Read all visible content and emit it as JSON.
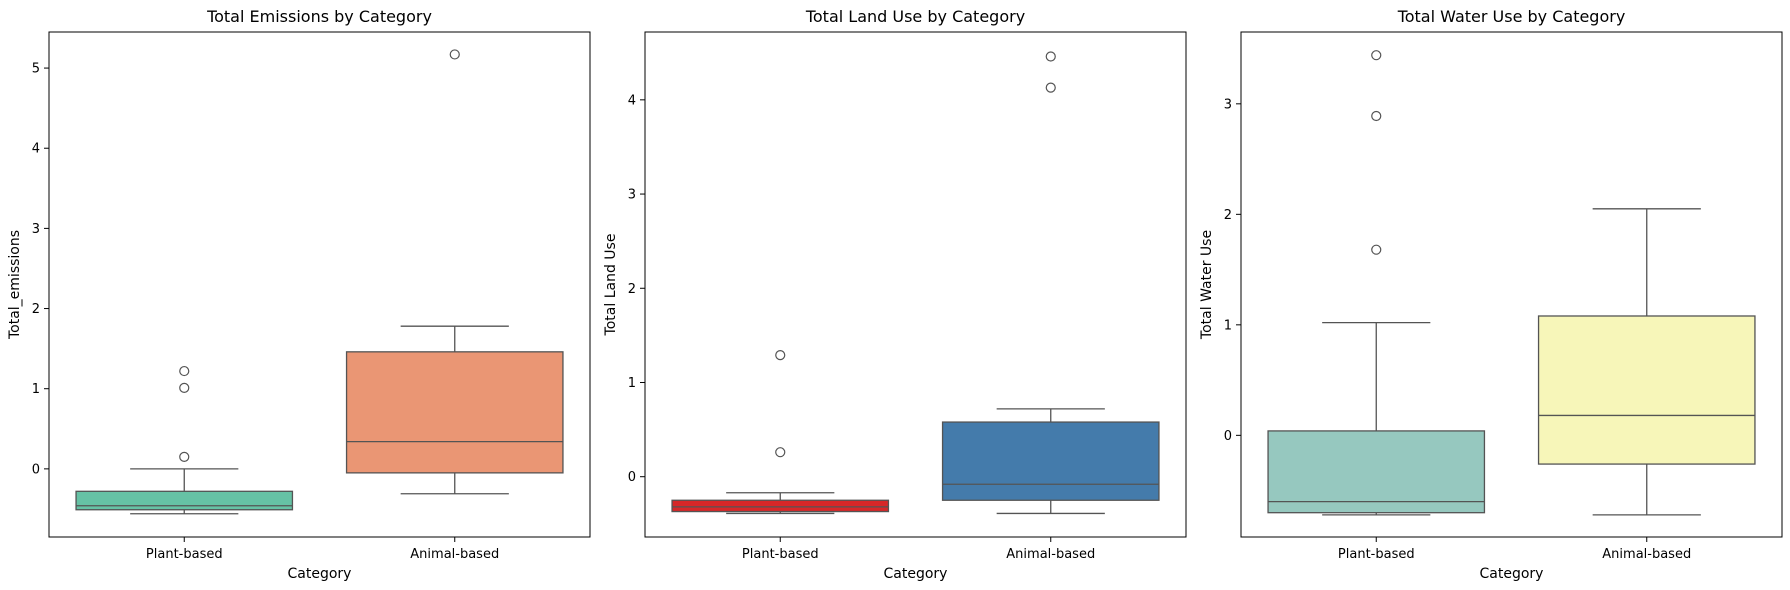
{
  "chart_data": [
    {
      "type": "box",
      "title": "Total Emissions by Category",
      "xlabel": "Category",
      "ylabel": "Total_emissions",
      "categories": [
        "Plant-based",
        "Animal-based"
      ],
      "ylim": [
        -0.85,
        5.45
      ],
      "yticks": [
        0,
        1,
        2,
        3,
        4,
        5
      ],
      "boxes": [
        {
          "category": "Plant-based",
          "color": "#66c2a5",
          "whisker_low": -0.56,
          "q1": -0.51,
          "median": -0.46,
          "q3": -0.28,
          "whisker_high": 0.0,
          "outliers": [
            0.15,
            1.01,
            1.22
          ]
        },
        {
          "category": "Animal-based",
          "color": "#ea9674",
          "whisker_low": -0.31,
          "q1": -0.05,
          "median": 0.34,
          "q3": 1.46,
          "whisker_high": 1.78,
          "outliers": [
            5.17
          ]
        }
      ]
    },
    {
      "type": "box",
      "title": "Total Land Use by Category",
      "xlabel": "Category",
      "ylabel": "Total Land Use",
      "categories": [
        "Plant-based",
        "Animal-based"
      ],
      "ylim": [
        -0.64,
        4.72
      ],
      "yticks": [
        0,
        1,
        2,
        3,
        4
      ],
      "boxes": [
        {
          "category": "Plant-based",
          "color": "#d62728",
          "whisker_low": -0.39,
          "q1": -0.37,
          "median": -0.32,
          "q3": -0.25,
          "whisker_high": -0.17,
          "outliers": [
            0.26,
            1.29
          ]
        },
        {
          "category": "Animal-based",
          "color": "#447bab",
          "whisker_low": -0.39,
          "q1": -0.25,
          "median": -0.08,
          "q3": 0.58,
          "whisker_high": 0.72,
          "outliers": [
            4.13,
            4.46
          ]
        }
      ]
    },
    {
      "type": "box",
      "title": "Total Water Use by Category",
      "xlabel": "Category",
      "ylabel": "Total Water Use",
      "categories": [
        "Plant-based",
        "Animal-based"
      ],
      "ylim": [
        -0.92,
        3.65
      ],
      "yticks": [
        0,
        1,
        2,
        3
      ],
      "boxes": [
        {
          "category": "Plant-based",
          "color": "#96c8bf",
          "whisker_low": -0.72,
          "q1": -0.7,
          "median": -0.6,
          "q3": 0.04,
          "whisker_high": 1.02,
          "outliers": [
            1.68,
            2.89,
            3.44
          ]
        },
        {
          "category": "Animal-based",
          "color": "#f7f6b9",
          "whisker_low": -0.72,
          "q1": -0.26,
          "median": 0.18,
          "q3": 1.08,
          "whisker_high": 2.05,
          "outliers": []
        }
      ]
    }
  ]
}
